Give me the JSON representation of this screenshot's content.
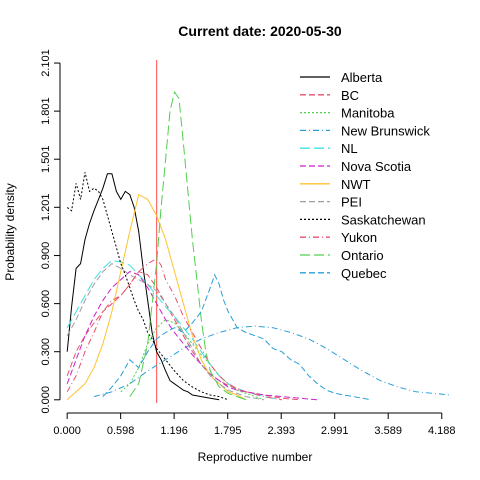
{
  "chart_data": {
    "type": "line",
    "title": "Current date:  2020-05-30",
    "xlabel": "Reproductive number",
    "ylabel": "Probability density",
    "xlim": [
      -0.08,
      4.28
    ],
    "ylim": [
      -0.02,
      2.12
    ],
    "x_ticks": [
      "0.000",
      "0.598",
      "1.196",
      "1.795",
      "2.393",
      "2.991",
      "3.589",
      "4.188"
    ],
    "x_tick_values": [
      0.0,
      0.598,
      1.196,
      1.795,
      2.393,
      2.991,
      3.589,
      4.188
    ],
    "y_ticks": [
      "0.000",
      "0.300",
      "0.600",
      "0.900",
      "1.201",
      "1.501",
      "1.801",
      "2.101"
    ],
    "y_tick_values": [
      0.0,
      0.3,
      0.6,
      0.9,
      1.201,
      1.501,
      1.801,
      2.101
    ],
    "reference_line": {
      "x": 1.0,
      "color": "#ff6b6b"
    },
    "legend_position": "top-right",
    "grid": false,
    "series": [
      {
        "name": "Alberta",
        "color": "#000000",
        "dash": "solid",
        "x": [
          0.0,
          0.05,
          0.1,
          0.15,
          0.2,
          0.25,
          0.3,
          0.35,
          0.4,
          0.45,
          0.5,
          0.55,
          0.6,
          0.65,
          0.7,
          0.75,
          0.8,
          0.85,
          0.9,
          0.95,
          1.0,
          1.05,
          1.1,
          1.15,
          1.2,
          1.25,
          1.3,
          1.35,
          1.4,
          1.5,
          1.6,
          1.7
        ],
        "y": [
          0.3,
          0.58,
          0.82,
          0.85,
          1.0,
          1.1,
          1.18,
          1.25,
          1.32,
          1.41,
          1.41,
          1.3,
          1.25,
          1.3,
          1.28,
          1.2,
          1.05,
          0.82,
          0.62,
          0.42,
          0.3,
          0.25,
          0.18,
          0.12,
          0.1,
          0.08,
          0.06,
          0.05,
          0.03,
          0.02,
          0.01,
          0.0
        ]
      },
      {
        "name": "BC",
        "color": "#e8506e",
        "dash": "dashed",
        "x": [
          0.0,
          0.1,
          0.2,
          0.3,
          0.4,
          0.5,
          0.6,
          0.7,
          0.8,
          0.9,
          1.0,
          1.1,
          1.2,
          1.3,
          1.4,
          1.5,
          1.6,
          1.7,
          1.8,
          2.0,
          2.2,
          2.4,
          2.6
        ],
        "y": [
          0.15,
          0.3,
          0.4,
          0.48,
          0.55,
          0.6,
          0.65,
          0.72,
          0.8,
          0.78,
          0.7,
          0.6,
          0.5,
          0.4,
          0.3,
          0.22,
          0.16,
          0.12,
          0.09,
          0.05,
          0.03,
          0.01,
          0.0
        ]
      },
      {
        "name": "Manitoba",
        "color": "#4fd04f",
        "dash": "dotted",
        "x": [
          0.6,
          0.7,
          0.8,
          0.9,
          1.0,
          1.1,
          1.2,
          1.3,
          1.4,
          1.5,
          1.6,
          1.7,
          1.8,
          1.9,
          2.0,
          2.1,
          2.2
        ],
        "y": [
          0.05,
          0.1,
          0.2,
          0.35,
          0.45,
          0.5,
          0.48,
          0.42,
          0.35,
          0.28,
          0.22,
          0.15,
          0.1,
          0.06,
          0.04,
          0.02,
          0.0
        ]
      },
      {
        "name": "New Brunswick",
        "color": "#2a9fd8",
        "dash": "dashdot",
        "x": [
          0.3,
          0.5,
          0.7,
          0.9,
          1.1,
          1.3,
          1.5,
          1.7,
          1.9,
          2.1,
          2.3,
          2.5,
          2.7,
          2.9,
          3.1,
          3.3,
          3.5,
          3.7,
          3.9,
          4.1,
          4.28
        ],
        "y": [
          0.02,
          0.05,
          0.1,
          0.18,
          0.25,
          0.32,
          0.38,
          0.42,
          0.45,
          0.46,
          0.45,
          0.42,
          0.38,
          0.32,
          0.25,
          0.18,
          0.12,
          0.08,
          0.05,
          0.04,
          0.03
        ]
      },
      {
        "name": "NL",
        "color": "#3ee0e0",
        "dash": "longdash",
        "x": [
          0.0,
          0.1,
          0.2,
          0.3,
          0.4,
          0.5,
          0.6,
          0.7,
          0.8,
          0.9,
          1.0,
          1.1,
          1.2,
          1.3,
          1.4,
          1.5,
          1.6,
          1.7,
          1.8,
          1.9,
          2.0,
          2.2,
          2.4
        ],
        "y": [
          0.45,
          0.55,
          0.65,
          0.75,
          0.82,
          0.87,
          0.86,
          0.84,
          0.78,
          0.72,
          0.65,
          0.58,
          0.52,
          0.45,
          0.38,
          0.3,
          0.22,
          0.15,
          0.1,
          0.07,
          0.05,
          0.02,
          0.0
        ]
      },
      {
        "name": "Nova Scotia",
        "color": "#cc22cc",
        "dash": "dashed",
        "x": [
          0.0,
          0.1,
          0.2,
          0.3,
          0.4,
          0.5,
          0.6,
          0.7,
          0.8,
          0.9,
          1.0,
          1.1,
          1.2,
          1.3,
          1.4,
          1.5,
          1.6,
          1.7,
          1.8,
          1.9,
          2.0,
          2.2,
          2.4,
          2.6,
          2.8
        ],
        "y": [
          0.1,
          0.25,
          0.4,
          0.52,
          0.62,
          0.7,
          0.75,
          0.8,
          0.78,
          0.7,
          0.6,
          0.5,
          0.42,
          0.35,
          0.28,
          0.22,
          0.16,
          0.12,
          0.08,
          0.06,
          0.05,
          0.03,
          0.02,
          0.01,
          0.0
        ]
      },
      {
        "name": "NWT",
        "color": "#ffc22e",
        "dash": "solid",
        "x": [
          0.0,
          0.1,
          0.2,
          0.3,
          0.4,
          0.5,
          0.6,
          0.7,
          0.8,
          0.9,
          1.0,
          1.1,
          1.2,
          1.3,
          1.4,
          1.5,
          1.6,
          1.7,
          1.8,
          1.9,
          2.0
        ],
        "y": [
          0.0,
          0.05,
          0.1,
          0.2,
          0.35,
          0.55,
          0.8,
          1.05,
          1.28,
          1.25,
          1.15,
          1.0,
          0.8,
          0.6,
          0.4,
          0.25,
          0.15,
          0.1,
          0.05,
          0.03,
          0.0
        ]
      },
      {
        "name": "PEI",
        "color": "#9e9e9e",
        "dash": "dashed",
        "x": [
          0.0,
          0.1,
          0.2,
          0.3,
          0.4,
          0.5,
          0.6,
          0.7,
          0.8,
          0.9,
          1.0,
          1.1,
          1.2,
          1.3,
          1.4,
          1.5,
          1.6,
          1.7,
          1.8,
          1.9,
          2.0,
          2.2
        ],
        "y": [
          0.4,
          0.5,
          0.62,
          0.72,
          0.8,
          0.85,
          0.82,
          0.78,
          0.75,
          0.72,
          0.68,
          0.6,
          0.52,
          0.42,
          0.32,
          0.22,
          0.15,
          0.1,
          0.06,
          0.04,
          0.02,
          0.0
        ]
      },
      {
        "name": "Saskatchewan",
        "color": "#000000",
        "dash": "dotted",
        "x": [
          0.0,
          0.05,
          0.1,
          0.15,
          0.2,
          0.25,
          0.3,
          0.35,
          0.4,
          0.45,
          0.5,
          0.55,
          0.6,
          0.65,
          0.7,
          0.75,
          0.8,
          0.85,
          0.9,
          0.95,
          1.0,
          1.1,
          1.2,
          1.3,
          1.4,
          1.5,
          1.6,
          1.7,
          1.8
        ],
        "y": [
          1.2,
          1.18,
          1.35,
          1.25,
          1.42,
          1.3,
          1.32,
          1.3,
          1.25,
          1.15,
          1.05,
          0.95,
          0.85,
          0.78,
          0.7,
          0.62,
          0.55,
          0.5,
          0.42,
          0.38,
          0.32,
          0.25,
          0.18,
          0.12,
          0.08,
          0.05,
          0.03,
          0.02,
          0.0
        ]
      },
      {
        "name": "Yukon",
        "color": "#e8506e",
        "dash": "dashdot",
        "x": [
          0.0,
          0.1,
          0.2,
          0.3,
          0.4,
          0.5,
          0.6,
          0.7,
          0.8,
          0.9,
          1.0,
          1.05,
          1.1,
          1.2,
          1.3,
          1.4,
          1.5,
          1.6,
          1.7,
          1.8,
          1.9,
          2.0,
          2.2,
          2.4
        ],
        "y": [
          0.05,
          0.15,
          0.3,
          0.42,
          0.55,
          0.62,
          0.65,
          0.72,
          0.8,
          0.85,
          0.88,
          0.84,
          0.75,
          0.65,
          0.52,
          0.42,
          0.32,
          0.22,
          0.15,
          0.1,
          0.07,
          0.05,
          0.02,
          0.0
        ]
      },
      {
        "name": "Ontario",
        "color": "#4fd04f",
        "dash": "longdash",
        "x": [
          0.7,
          0.8,
          0.9,
          1.0,
          1.05,
          1.1,
          1.15,
          1.2,
          1.25,
          1.3,
          1.35,
          1.4,
          1.45,
          1.5,
          1.55,
          1.6,
          1.7,
          1.8,
          1.9,
          2.0
        ],
        "y": [
          0.02,
          0.1,
          0.35,
          0.85,
          1.2,
          1.5,
          1.8,
          1.92,
          1.88,
          1.6,
          1.3,
          1.0,
          0.75,
          0.5,
          0.3,
          0.18,
          0.08,
          0.04,
          0.02,
          0.0
        ]
      },
      {
        "name": "Quebec",
        "color": "#2a9fd8",
        "dash": "dashed",
        "x": [
          0.4,
          0.5,
          0.6,
          0.7,
          0.8,
          0.9,
          1.0,
          1.1,
          1.2,
          1.3,
          1.4,
          1.5,
          1.6,
          1.65,
          1.7,
          1.75,
          1.8,
          1.9,
          2.0,
          2.1,
          2.2,
          2.3,
          2.4,
          2.5,
          2.6,
          2.7,
          2.8,
          2.9,
          3.0,
          3.2,
          3.4
        ],
        "y": [
          0.02,
          0.08,
          0.15,
          0.25,
          0.2,
          0.3,
          0.38,
          0.42,
          0.45,
          0.42,
          0.48,
          0.55,
          0.7,
          0.78,
          0.72,
          0.62,
          0.55,
          0.45,
          0.42,
          0.4,
          0.38,
          0.32,
          0.3,
          0.25,
          0.22,
          0.15,
          0.1,
          0.06,
          0.04,
          0.02,
          0.0
        ]
      }
    ]
  }
}
